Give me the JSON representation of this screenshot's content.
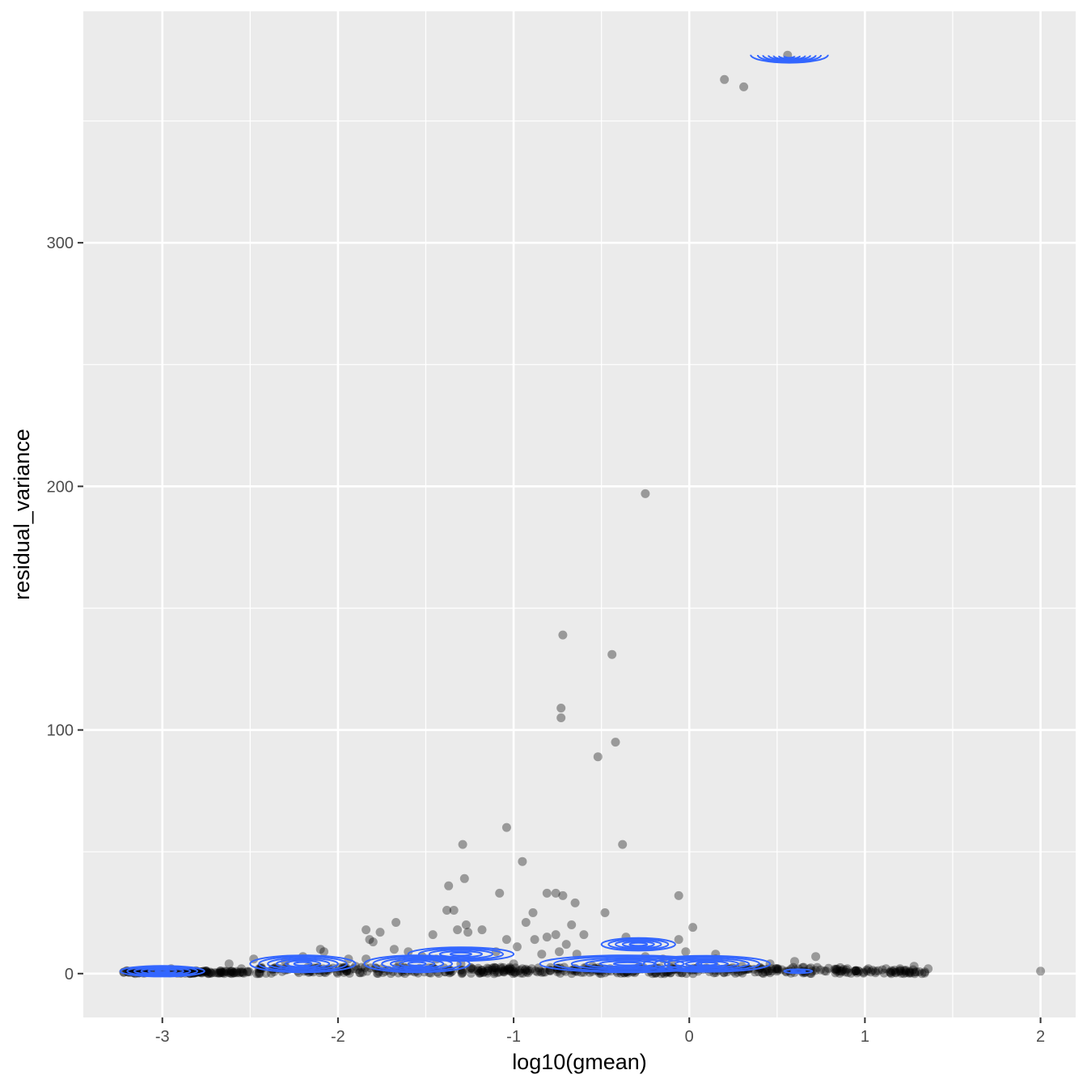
{
  "chart_data": {
    "type": "scatter",
    "title": "",
    "xlabel": "log10(gmean)",
    "ylabel": "residual_variance",
    "xlim": [
      -3.45,
      2.2
    ],
    "ylim": [
      -18,
      395
    ],
    "x_ticks": [
      -3,
      -2,
      -1,
      0,
      1,
      2
    ],
    "x_tick_labels": [
      "-3",
      "-2",
      "-1",
      "0",
      "1",
      "2"
    ],
    "y_ticks": [
      0,
      100,
      200,
      300
    ],
    "y_tick_labels": [
      "0",
      "100",
      "200",
      "300"
    ],
    "grid": true,
    "background": "#ebebeb",
    "point_color": "#000000",
    "point_opacity": 0.35,
    "contour_color": "#3366ff",
    "points": [
      [
        0.56,
        377
      ],
      [
        0.2,
        367
      ],
      [
        0.31,
        364
      ],
      [
        -0.25,
        197
      ],
      [
        -0.72,
        139
      ],
      [
        -0.44,
        131
      ],
      [
        -0.73,
        109
      ],
      [
        -0.73,
        105
      ],
      [
        -0.42,
        95
      ],
      [
        -0.52,
        89
      ],
      [
        -1.04,
        60
      ],
      [
        -0.95,
        46
      ],
      [
        -1.29,
        53
      ],
      [
        -0.38,
        53
      ],
      [
        -1.28,
        39
      ],
      [
        -1.37,
        36
      ],
      [
        -1.08,
        33
      ],
      [
        -0.81,
        33
      ],
      [
        -0.76,
        33
      ],
      [
        -0.72,
        32
      ],
      [
        -0.06,
        32
      ],
      [
        -0.65,
        29
      ],
      [
        -0.48,
        25
      ],
      [
        -0.89,
        25
      ],
      [
        -1.38,
        26
      ],
      [
        -1.34,
        26
      ],
      [
        -1.27,
        20
      ],
      [
        -1.32,
        18
      ],
      [
        -1.18,
        18
      ],
      [
        -1.26,
        17
      ],
      [
        0.02,
        19
      ],
      [
        -0.93,
        21
      ],
      [
        -1.67,
        21
      ],
      [
        -1.76,
        17
      ],
      [
        -1.84,
        18
      ],
      [
        -1.82,
        14
      ],
      [
        -1.8,
        13
      ],
      [
        -1.46,
        16
      ],
      [
        -0.76,
        16
      ],
      [
        -0.81,
        15
      ],
      [
        -0.67,
        20
      ],
      [
        -0.6,
        16
      ],
      [
        -1.04,
        14
      ],
      [
        -0.7,
        12
      ],
      [
        -0.88,
        14
      ],
      [
        -0.36,
        15
      ],
      [
        -0.06,
        14
      ],
      [
        0.72,
        7
      ],
      [
        0.15,
        8
      ],
      [
        -0.98,
        11
      ],
      [
        -0.74,
        9
      ],
      [
        -2.1,
        10
      ],
      [
        -2.08,
        9
      ],
      [
        -2.48,
        6
      ],
      [
        -2.2,
        7
      ],
      [
        -1.94,
        6
      ],
      [
        -1.84,
        6
      ],
      [
        -1.52,
        7
      ],
      [
        -1.44,
        6
      ],
      [
        -1.1,
        9
      ],
      [
        -0.84,
        8
      ],
      [
        -0.64,
        8
      ],
      [
        -0.25,
        7
      ],
      [
        0.15,
        6
      ],
      [
        0.46,
        4
      ],
      [
        0.6,
        5
      ],
      [
        -0.02,
        9
      ],
      [
        -0.15,
        6
      ],
      [
        -1.68,
        10
      ],
      [
        -1.6,
        9
      ],
      [
        -2.62,
        4
      ],
      [
        -2.3,
        5
      ],
      [
        -1.9,
        3
      ],
      [
        -1.65,
        4
      ],
      [
        -1.3,
        4
      ],
      [
        -1.0,
        4
      ],
      [
        -0.55,
        3
      ],
      [
        -0.1,
        4
      ],
      [
        0.3,
        3
      ],
      [
        0.9,
        2
      ],
      [
        1.02,
        2
      ],
      [
        1.12,
        2
      ],
      [
        1.2,
        2
      ],
      [
        1.28,
        3
      ],
      [
        1.36,
        2
      ],
      [
        1.06,
        1
      ],
      [
        0.94,
        1
      ],
      [
        0.78,
        1
      ],
      [
        0.84,
        1
      ],
      [
        -3.2,
        1
      ],
      [
        -3.15,
        1
      ],
      [
        -3.05,
        1
      ],
      [
        -2.95,
        2
      ],
      [
        -2.85,
        1
      ],
      [
        -2.75,
        1
      ],
      [
        -2.55,
        2
      ],
      [
        -2.45,
        2
      ],
      [
        -2.35,
        2
      ],
      [
        -2.15,
        1
      ],
      [
        -2.05,
        2
      ],
      [
        -1.95,
        1
      ],
      [
        -1.75,
        2
      ],
      [
        -1.55,
        1
      ],
      [
        -1.45,
        2
      ],
      [
        -1.35,
        1
      ],
      [
        -1.15,
        1
      ],
      [
        -0.95,
        2
      ],
      [
        -0.85,
        1
      ],
      [
        -0.75,
        2
      ],
      [
        -0.65,
        1
      ],
      [
        -0.45,
        2
      ],
      [
        -0.35,
        1
      ],
      [
        -0.2,
        2
      ],
      [
        0.05,
        1
      ],
      [
        0.1,
        2
      ],
      [
        0.25,
        1
      ],
      [
        0.4,
        2
      ],
      [
        0.5,
        1
      ],
      [
        0.55,
        1
      ],
      [
        0.65,
        1
      ],
      [
        0.7,
        1
      ],
      [
        2.0,
        1
      ]
    ],
    "dense_band": {
      "x_range": [
        -3.22,
        1.38
      ],
      "y_range": [
        0,
        3
      ],
      "description": "dense cloud of points along residual_variance near 0"
    },
    "contours": [
      {
        "x": 0.57,
        "y": 376.5,
        "rx": [
          0.03,
          0.06,
          0.09,
          0.12,
          0.15,
          0.18,
          0.22
        ],
        "ry": [
          0.7,
          1.2,
          1.6,
          2.1,
          2.5,
          2.9,
          3.3
        ],
        "open_top": true
      },
      {
        "x": -0.29,
        "y": 12,
        "rx": [
          0.05,
          0.09,
          0.13,
          0.17,
          0.21
        ],
        "ry": [
          0.6,
          1.1,
          1.6,
          2.1,
          2.6
        ]
      },
      {
        "x": -2.2,
        "y": 4,
        "rx": [
          0.05,
          0.1,
          0.15,
          0.2,
          0.25,
          0.3
        ],
        "ry": [
          0.7,
          1.3,
          1.8,
          2.4,
          3.0,
          3.5
        ]
      },
      {
        "x": -1.55,
        "y": 4,
        "rx": [
          0.05,
          0.1,
          0.15,
          0.2,
          0.25,
          0.3
        ],
        "ry": [
          0.7,
          1.3,
          1.8,
          2.4,
          3.0,
          3.5
        ]
      },
      {
        "x": -1.3,
        "y": 8,
        "rx": [
          0.06,
          0.12,
          0.18,
          0.24,
          0.3
        ],
        "ry": [
          0.6,
          1.2,
          1.8,
          2.3,
          2.8
        ]
      },
      {
        "x": -0.35,
        "y": 4,
        "rx": [
          0.08,
          0.16,
          0.24,
          0.32,
          0.42,
          0.5
        ],
        "ry": [
          0.6,
          1.2,
          1.8,
          2.4,
          3.0,
          3.5
        ]
      },
      {
        "x": 0.1,
        "y": 4,
        "rx": [
          0.06,
          0.12,
          0.18,
          0.24,
          0.3,
          0.36
        ],
        "ry": [
          0.6,
          1.1,
          1.6,
          2.2,
          2.8,
          3.3
        ]
      },
      {
        "x": -3.0,
        "y": 1,
        "rx": [
          0.04,
          0.08,
          0.12,
          0.16,
          0.2,
          0.24
        ],
        "ry": [
          0.4,
          0.8,
          1.2,
          1.5,
          1.9,
          2.2
        ]
      },
      {
        "x": 0.62,
        "y": 1,
        "rx": [
          0.04,
          0.08
        ],
        "ry": [
          0.4,
          0.8
        ]
      }
    ]
  }
}
